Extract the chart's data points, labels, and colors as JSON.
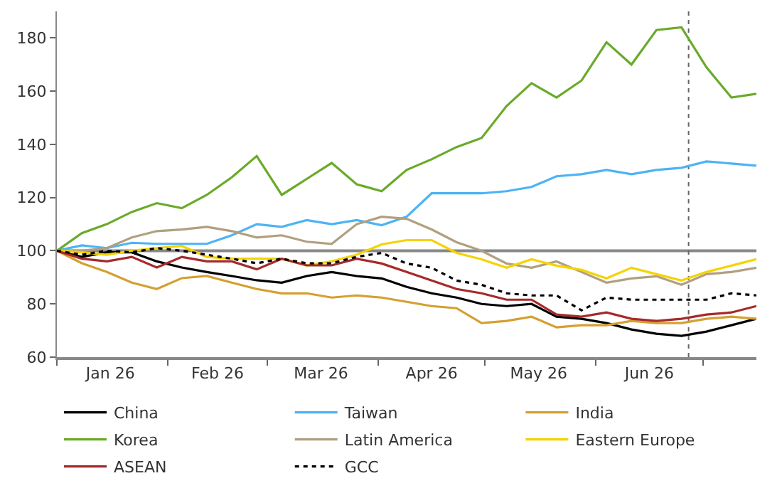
{
  "chart_data": {
    "type": "line",
    "x": [
      "2026-01-01",
      "2026-01-08",
      "2026-01-15",
      "2026-01-22",
      "2026-01-29",
      "2026-02-05",
      "2026-02-12",
      "2026-02-19",
      "2026-02-26",
      "2026-03-05",
      "2026-03-12",
      "2026-03-19",
      "2026-03-26",
      "2026-04-02",
      "2026-04-09",
      "2026-04-16",
      "2026-04-23",
      "2026-04-30",
      "2026-05-07",
      "2026-05-14",
      "2026-05-21",
      "2026-05-28",
      "2026-06-04",
      "2026-06-11",
      "2026-06-18",
      "2026-06-25",
      "2026-07-02",
      "2026-07-09",
      "2026-07-16"
    ],
    "series": [
      {
        "name": "China",
        "color": "#000000",
        "values": [
          100,
          97.7,
          99.4,
          99.4,
          96,
          93.7,
          92,
          90.5,
          88.9,
          88,
          90.5,
          92,
          90.5,
          89.6,
          86.4,
          84,
          82.4,
          80,
          79.2,
          80,
          75.2,
          74.4,
          72.8,
          70.4,
          68.8,
          68,
          69.6,
          72,
          74.4
        ]
      },
      {
        "name": "Taiwan",
        "color": "#4db3f5",
        "values": [
          100,
          102,
          101,
          103,
          102.6,
          102.6,
          102.6,
          105.8,
          110,
          109,
          111.5,
          110,
          111.5,
          109.6,
          112.8,
          121.6,
          121.6,
          121.6,
          122.4,
          124,
          128,
          128.8,
          130.4,
          128.8,
          130.4,
          131.2,
          133.6,
          132.8,
          132
        ]
      },
      {
        "name": "India",
        "color": "#d4a030",
        "values": [
          100,
          95.3,
          92,
          88,
          85.6,
          89.7,
          90.5,
          88,
          85.6,
          84,
          84,
          82.4,
          83.2,
          82.4,
          80.8,
          79.2,
          78.4,
          72.8,
          73.6,
          75.2,
          71.2,
          72,
          72,
          73.6,
          72.8,
          72.8,
          74.4,
          75.2,
          74.4
        ]
      },
      {
        "name": "Korea",
        "color": "#6aaa2a",
        "values": [
          100,
          106.6,
          110,
          114.6,
          117.9,
          116,
          121,
          127.6,
          135.6,
          121,
          127,
          133,
          125,
          122.4,
          130.4,
          134.4,
          139,
          142.4,
          154.4,
          163,
          157.6,
          164,
          178.4,
          170,
          183,
          184,
          169,
          157.6,
          159
        ]
      },
      {
        "name": "Latin America",
        "color": "#b0a080",
        "values": [
          100,
          100,
          101,
          105,
          107.4,
          108,
          109,
          107.4,
          105,
          105.8,
          103.4,
          102.6,
          110,
          112.8,
          112,
          108,
          103.2,
          100,
          95.2,
          93.6,
          96,
          92,
          88,
          89.6,
          90.4,
          87.2,
          91.2,
          92,
          93.6
        ]
      },
      {
        "name": "Eastern Europe",
        "color": "#f5d300",
        "values": [
          100,
          99.4,
          98.5,
          100,
          101,
          101.8,
          97.7,
          97,
          97,
          97,
          94.5,
          96,
          98.5,
          102.4,
          104,
          104,
          99.2,
          96.8,
          93.6,
          96.8,
          94.4,
          92.8,
          89.6,
          93.6,
          91.2,
          88.8,
          92,
          94.4,
          96.8
        ]
      },
      {
        "name": "ASEAN",
        "color": "#a52a2a",
        "values": [
          100,
          97,
          96,
          97.7,
          93.7,
          97.7,
          96,
          96,
          93,
          97,
          94.5,
          94.5,
          97,
          95.2,
          92,
          88.8,
          85.6,
          84,
          81.6,
          81.6,
          76,
          75.2,
          76.8,
          74.4,
          73.6,
          74.4,
          76,
          76.8,
          79.2
        ]
      },
      {
        "name": "GCC",
        "color": "#000000",
        "line_style": "dotted",
        "values": [
          100,
          98.5,
          100,
          99.4,
          101,
          100,
          98.5,
          97,
          95.3,
          97,
          95.3,
          95.3,
          97.7,
          99.2,
          95.2,
          93.6,
          88.8,
          87.2,
          84,
          83.2,
          83.2,
          77.6,
          82.4,
          81.6,
          81.6,
          81.6,
          81.6,
          84,
          83.2
        ]
      }
    ],
    "xlim": [
      "2026-01-01",
      "2026-07-16"
    ],
    "xticks": [
      {
        "value": "2026-01-01",
        "label": null
      },
      {
        "value": "2026-01-16",
        "label": "Jan 26"
      },
      {
        "value": "2026-02-01",
        "label": null
      },
      {
        "value": "2026-02-15",
        "label": "Feb 26"
      },
      {
        "value": "2026-03-01",
        "label": null
      },
      {
        "value": "2026-03-16",
        "label": "Mar 26"
      },
      {
        "value": "2026-04-01",
        "label": null
      },
      {
        "value": "2026-04-16",
        "label": "Apr 26"
      },
      {
        "value": "2026-05-01",
        "label": null
      },
      {
        "value": "2026-05-16",
        "label": "May 26"
      },
      {
        "value": "2026-06-01",
        "label": null
      },
      {
        "value": "2026-06-16",
        "label": "Jun 26"
      },
      {
        "value": "2026-07-01",
        "label": null
      }
    ],
    "ylim": [
      60,
      190
    ],
    "yticks": [
      60,
      80,
      100,
      120,
      140,
      160,
      180
    ],
    "ref_lines": [
      {
        "axis": "y",
        "value": 100,
        "color": "#888888",
        "line_style": "solid"
      },
      {
        "axis": "x",
        "value": "2026-06-27",
        "color": "#666666",
        "line_style": "dotted"
      }
    ],
    "grid": false,
    "legend": "bottom",
    "marker": "none",
    "line_style": "solid"
  }
}
